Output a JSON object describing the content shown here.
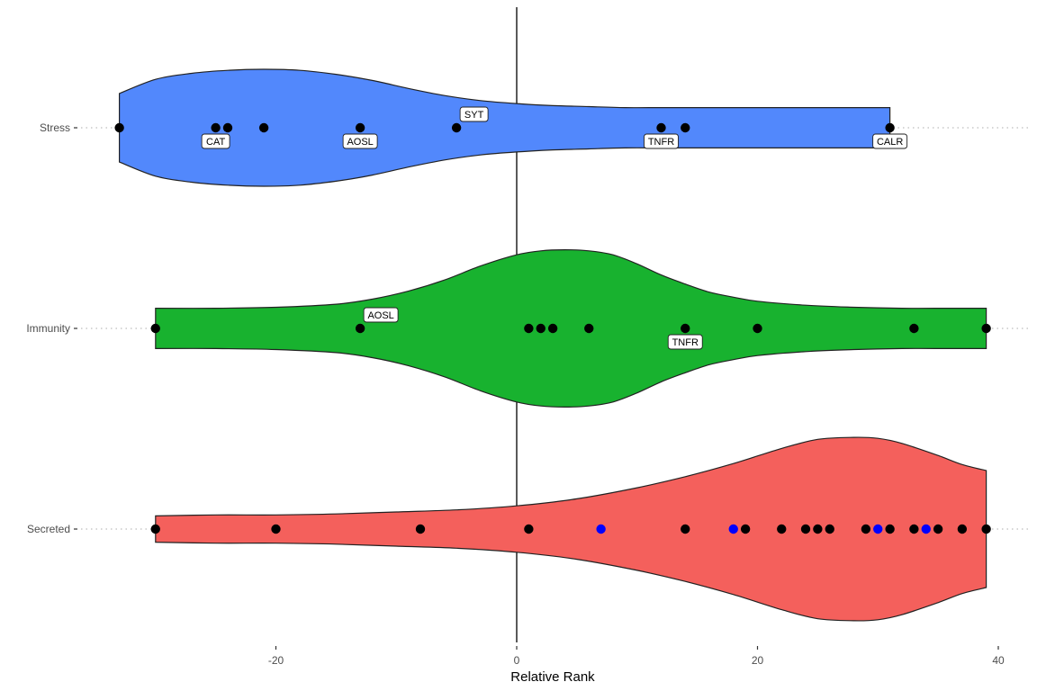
{
  "chart_data": {
    "type": "violin",
    "title": "",
    "xlabel": "Relative Rank",
    "ylabel": "",
    "xlim": [
      -33,
      41
    ],
    "x_ticks": [
      -20,
      0,
      20,
      40
    ],
    "x_tick_labels": [
      "-20",
      "0",
      "20",
      "40"
    ],
    "reference_line_x": 0,
    "orientation": "horizontal",
    "grid": false,
    "legend": "none",
    "categories": [
      "Stress",
      "Immunity",
      "Secreted"
    ],
    "series": [
      {
        "name": "Stress",
        "color": "#5288fc",
        "violin": {
          "x": [
            -33,
            -30,
            -27,
            -24,
            -21,
            -18,
            -15,
            -12,
            -9,
            -6,
            -3,
            0,
            3,
            6,
            9,
            12,
            15,
            18,
            21,
            24,
            27,
            30,
            31
          ],
          "width": [
            0.34,
            0.48,
            0.54,
            0.57,
            0.58,
            0.57,
            0.53,
            0.47,
            0.39,
            0.32,
            0.27,
            0.24,
            0.22,
            0.21,
            0.2,
            0.2,
            0.2,
            0.2,
            0.2,
            0.2,
            0.2,
            0.2,
            0.2
          ]
        },
        "points": [
          {
            "x": -33,
            "color": "#000000"
          },
          {
            "x": -25,
            "color": "#000000"
          },
          {
            "x": -24,
            "color": "#000000"
          },
          {
            "x": -21,
            "color": "#000000"
          },
          {
            "x": -13,
            "color": "#000000"
          },
          {
            "x": -5,
            "color": "#000000"
          },
          {
            "x": 12,
            "color": "#000000"
          },
          {
            "x": 14,
            "color": "#000000"
          },
          {
            "x": 31,
            "color": "#000000"
          }
        ],
        "labels": [
          {
            "text": "CAT",
            "x": -25,
            "pos": "below"
          },
          {
            "text": "AOSL",
            "x": -13,
            "pos": "below"
          },
          {
            "text": "SYT",
            "x": -5,
            "pos": "above"
          },
          {
            "text": "TNFR",
            "x": 12,
            "pos": "below"
          },
          {
            "text": "CALR",
            "x": 31,
            "pos": "below"
          }
        ]
      },
      {
        "name": "Immunity",
        "color": "#18b22f",
        "violin": {
          "x": [
            -30,
            -25,
            -20,
            -15,
            -12,
            -9,
            -6,
            -3,
            0,
            2,
            4,
            6,
            8,
            10,
            12,
            14,
            16,
            18,
            20,
            24,
            28,
            32,
            36,
            39
          ],
          "width": [
            0.2,
            0.2,
            0.21,
            0.24,
            0.29,
            0.37,
            0.48,
            0.62,
            0.73,
            0.77,
            0.78,
            0.77,
            0.73,
            0.64,
            0.53,
            0.44,
            0.36,
            0.31,
            0.27,
            0.23,
            0.21,
            0.2,
            0.2,
            0.2
          ]
        },
        "points": [
          {
            "x": -30,
            "color": "#000000"
          },
          {
            "x": -13,
            "color": "#000000"
          },
          {
            "x": 1,
            "color": "#000000"
          },
          {
            "x": 2,
            "color": "#000000"
          },
          {
            "x": 3,
            "color": "#000000"
          },
          {
            "x": 6,
            "color": "#000000"
          },
          {
            "x": 14,
            "color": "#000000"
          },
          {
            "x": 20,
            "color": "#000000"
          },
          {
            "x": 33,
            "color": "#000000"
          },
          {
            "x": 39,
            "color": "#000000"
          }
        ],
        "labels": [
          {
            "text": "AOSL",
            "x": -13,
            "pos": "above"
          },
          {
            "text": "TNFR",
            "x": 14,
            "pos": "below"
          }
        ]
      },
      {
        "name": "Secreted",
        "color": "#f4605c",
        "violin": {
          "x": [
            -30,
            -25,
            -20,
            -15,
            -10,
            -5,
            0,
            5,
            10,
            14,
            18,
            22,
            25,
            28,
            30,
            32,
            35,
            37,
            39
          ],
          "width": [
            0.13,
            0.14,
            0.14,
            0.15,
            0.17,
            0.19,
            0.23,
            0.3,
            0.41,
            0.52,
            0.65,
            0.8,
            0.89,
            0.91,
            0.9,
            0.85,
            0.73,
            0.64,
            0.58
          ]
        },
        "points": [
          {
            "x": -30,
            "color": "#000000"
          },
          {
            "x": -20,
            "color": "#000000"
          },
          {
            "x": -8,
            "color": "#000000"
          },
          {
            "x": 1,
            "color": "#000000"
          },
          {
            "x": 7,
            "color": "#0000ff"
          },
          {
            "x": 14,
            "color": "#000000"
          },
          {
            "x": 18,
            "color": "#0000ff"
          },
          {
            "x": 19,
            "color": "#000000"
          },
          {
            "x": 22,
            "color": "#000000"
          },
          {
            "x": 24,
            "color": "#000000"
          },
          {
            "x": 25,
            "color": "#000000"
          },
          {
            "x": 26,
            "color": "#000000"
          },
          {
            "x": 29,
            "color": "#000000"
          },
          {
            "x": 30,
            "color": "#0000ff"
          },
          {
            "x": 31,
            "color": "#000000"
          },
          {
            "x": 33,
            "color": "#000000"
          },
          {
            "x": 34,
            "color": "#0000ff"
          },
          {
            "x": 35,
            "color": "#000000"
          },
          {
            "x": 37,
            "color": "#000000"
          },
          {
            "x": 39,
            "color": "#000000"
          }
        ],
        "labels": []
      }
    ]
  }
}
